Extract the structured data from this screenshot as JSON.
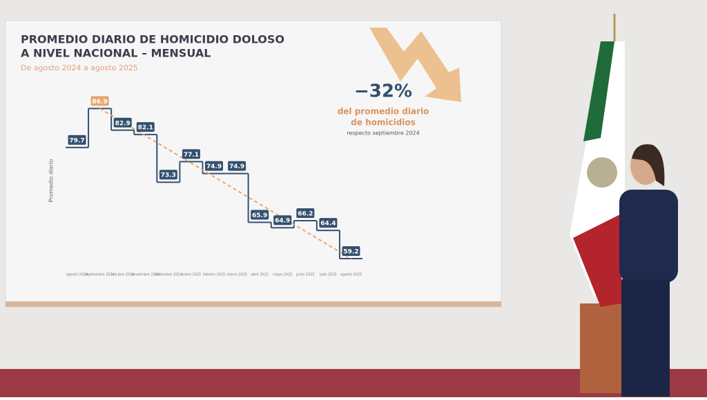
{
  "chart_data": {
    "type": "step",
    "title": "PROMEDIO DIARIO DE HOMICIDIO DOLOSO",
    "title_line2": "A NIVEL NACIONAL – MENSUAL",
    "subtitle": "De agosto 2024 a agosto 2025",
    "y_label": "Promedio diario",
    "annotation_value": "−32%",
    "annotation_line1": "del promedio diario",
    "annotation_line2": "de homicidios",
    "annotation_line3": "respecto septiembre 2024",
    "categories": [
      "agosto 2024",
      "septiembre 2024",
      "octubre 2024",
      "noviembre 2024",
      "diciembre 2024",
      "enero 2025",
      "febrero 2025",
      "marzo 2025",
      "abril 2025",
      "mayo 2025",
      "junio 2025",
      "julio 2025",
      "agosto 2025"
    ],
    "values": [
      79.7,
      86.9,
      82.9,
      82.1,
      73.3,
      77.1,
      74.9,
      74.9,
      65.9,
      64.9,
      66.2,
      64.4,
      59.2
    ],
    "color": "#34506f",
    "highlight_color": "#e9a56c",
    "ylim": [
      55,
      90
    ]
  }
}
